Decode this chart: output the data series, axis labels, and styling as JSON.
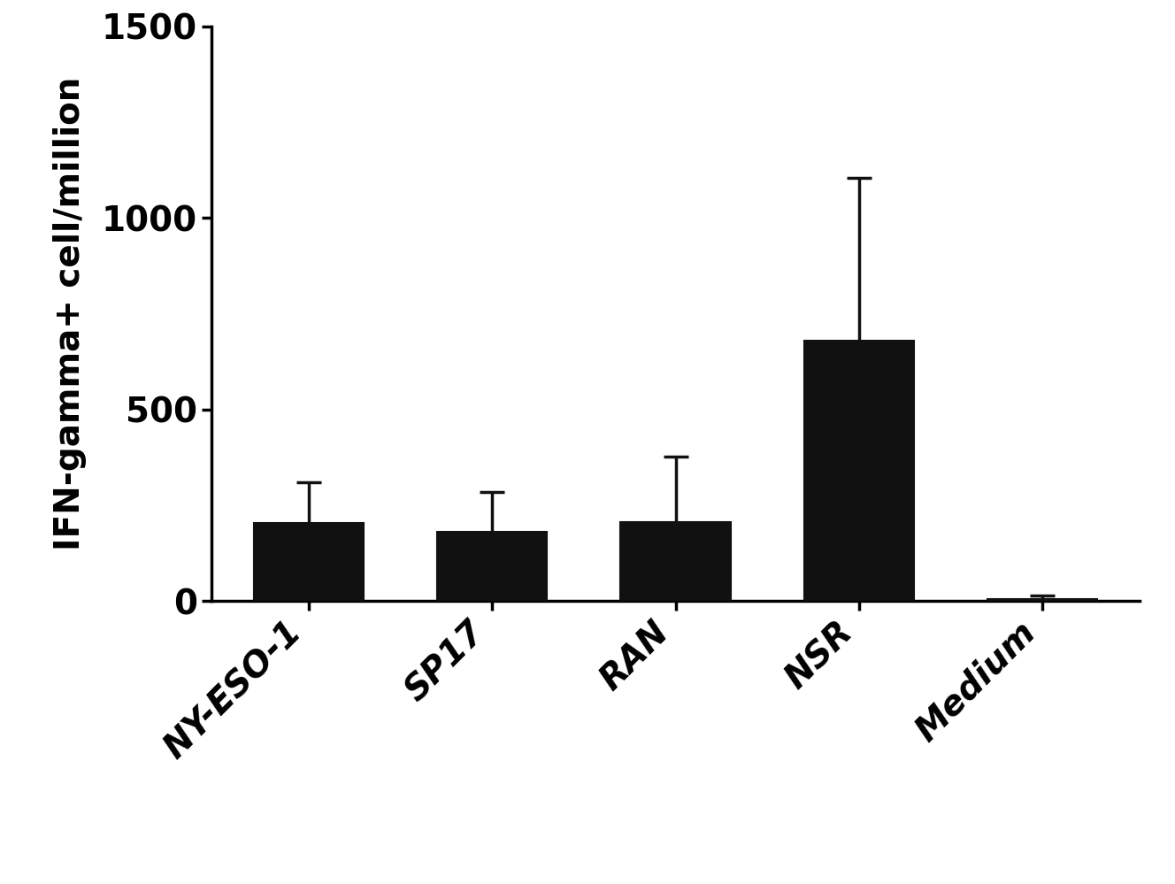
{
  "categories": [
    "NY-ESO-1",
    "SP17",
    "RAN",
    "NSR",
    "Medium"
  ],
  "values": [
    205,
    182,
    207,
    680,
    5
  ],
  "errors": [
    105,
    102,
    170,
    425,
    10
  ],
  "bar_color": "#111111",
  "bar_width": 0.6,
  "ylabel": "IFN-gamma+ cell/million",
  "ylim": [
    0,
    1500
  ],
  "yticks": [
    0,
    500,
    1000,
    1500
  ],
  "xlabel": "",
  "title": "",
  "figsize": [
    13.28,
    9.99
  ],
  "dpi": 100,
  "background_color": "#ffffff",
  "spine_color": "#000000",
  "tick_fontsize": 28,
  "label_fontsize": 28,
  "error_capsize": 10,
  "error_linewidth": 2.5,
  "bar_edge_color": "#111111"
}
